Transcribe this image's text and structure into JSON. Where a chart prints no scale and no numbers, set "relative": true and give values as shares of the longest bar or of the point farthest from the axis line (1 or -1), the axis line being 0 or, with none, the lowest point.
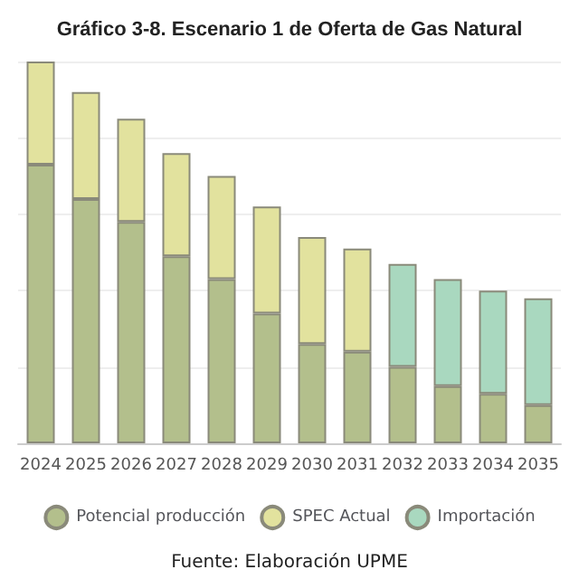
{
  "chart_data": {
    "type": "bar",
    "title": "Gráfico 3-8. Escenario 1 de Oferta de Gas Natural",
    "categories": [
      "2024",
      "2025",
      "2026",
      "2027",
      "2028",
      "2029",
      "2030",
      "2031",
      "2032",
      "2033",
      "2034",
      "2035"
    ],
    "series": [
      {
        "name": "Potencial producción",
        "color": "#b3bf8c",
        "values": [
          0.73,
          0.64,
          0.58,
          0.49,
          0.43,
          0.34,
          0.26,
          0.24,
          0.2,
          0.15,
          0.13,
          0.1
        ]
      },
      {
        "name": "SPEC Actual",
        "color": "#e2e29e",
        "values": [
          0.27,
          0.28,
          0.27,
          0.27,
          0.27,
          0.28,
          0.28,
          0.27,
          null,
          null,
          null,
          null
        ]
      },
      {
        "name": "Importación",
        "color": "#a9d8bf",
        "values": [
          null,
          null,
          null,
          null,
          null,
          null,
          null,
          null,
          0.27,
          0.28,
          0.27,
          0.28
        ]
      }
    ],
    "stacked": true,
    "relative": true,
    "grid": "y",
    "legend": "bottom",
    "annotations": [
      "Fuente: Elaboración UPME"
    ]
  }
}
